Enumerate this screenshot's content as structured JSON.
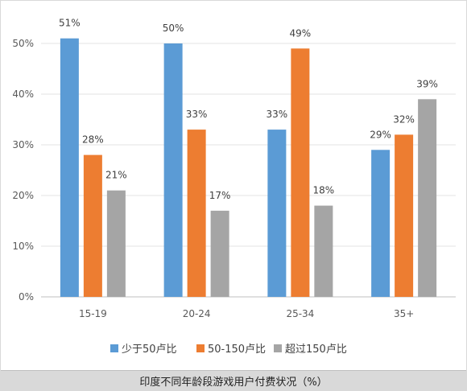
{
  "chart_data": {
    "type": "bar",
    "title": "",
    "xlabel": "",
    "ylabel": "",
    "categories": [
      "15-19",
      "20-24",
      "25-34",
      "35+"
    ],
    "series": [
      {
        "name": "少于50卢比",
        "color": "#5b9bd5",
        "values": [
          51,
          50,
          33,
          29
        ]
      },
      {
        "name": "50-150卢比",
        "color": "#ed7d31",
        "values": [
          28,
          33,
          49,
          32
        ]
      },
      {
        "name": "超过150卢比",
        "color": "#a5a5a5",
        "values": [
          21,
          17,
          18,
          39
        ]
      }
    ],
    "ylim": [
      0,
      50
    ],
    "y_ticks": [
      "0%",
      "10%",
      "20%",
      "30%",
      "40%",
      "50%"
    ],
    "data_labels": [
      [
        "51%",
        "50%",
        "33%",
        "29%"
      ],
      [
        "28%",
        "33%",
        "49%",
        "32%"
      ],
      [
        "21%",
        "17%",
        "18%",
        "39%"
      ]
    ],
    "grid": true,
    "legend_position": "bottom"
  },
  "caption": "印度不同年龄段游戏用户付费状况（%）"
}
